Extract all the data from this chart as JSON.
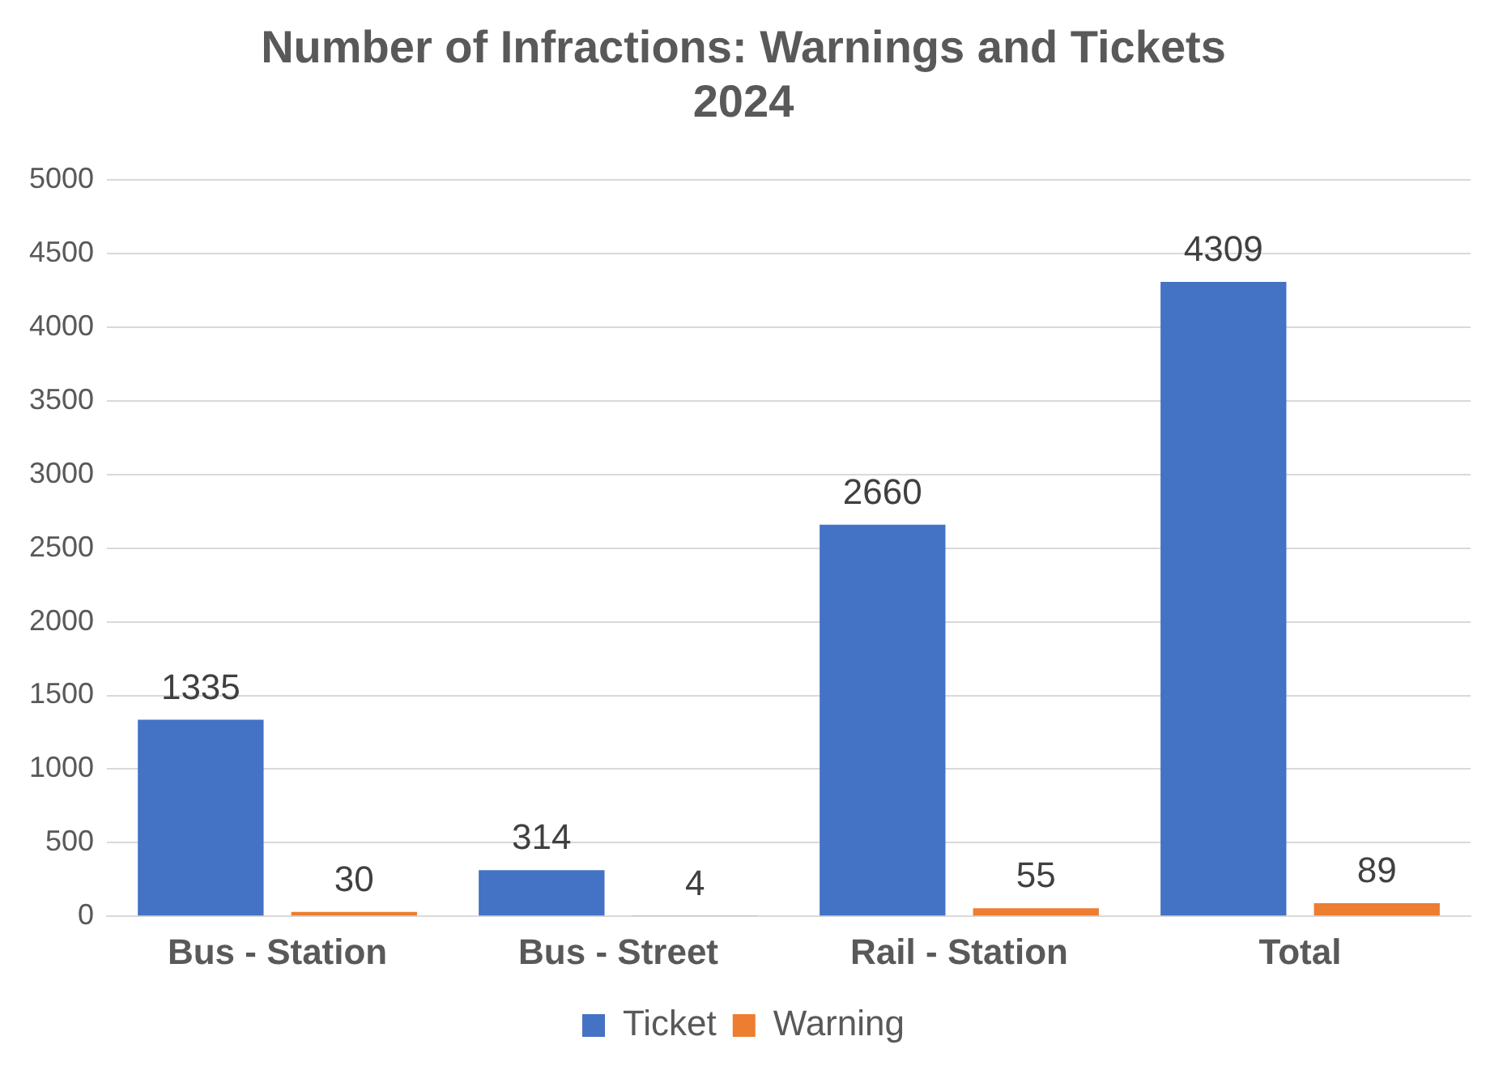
{
  "chart_data": {
    "type": "bar",
    "title": "Number of Infractions: Warnings and Tickets\n2024",
    "categories": [
      "Bus - Station",
      "Bus - Street",
      "Rail - Station",
      "Total"
    ],
    "series": [
      {
        "name": "Ticket",
        "color": "#4472c4",
        "values": [
          1335,
          314,
          2660,
          4309
        ]
      },
      {
        "name": "Warning",
        "color": "#ed7d31",
        "values": [
          30,
          4,
          55,
          89
        ]
      }
    ],
    "ylim": [
      0,
      5000
    ],
    "yticks": [
      0,
      500,
      1000,
      1500,
      2000,
      2500,
      3000,
      3500,
      4000,
      4500,
      5000
    ],
    "grid": "y",
    "legend": "bottom",
    "data_labels": true
  }
}
